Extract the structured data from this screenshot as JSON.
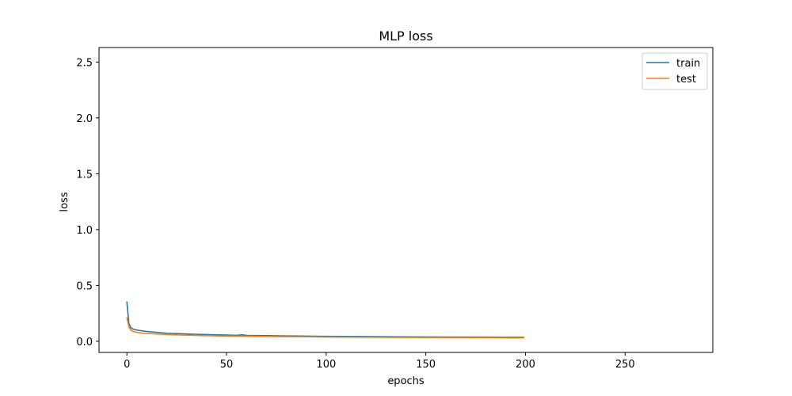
{
  "chart_data": {
    "type": "line",
    "title": "MLP loss",
    "xlabel": "epochs",
    "ylabel": "loss",
    "xlim": [
      -14,
      294
    ],
    "ylim": [
      -0.1,
      2.63
    ],
    "xticks": [
      0,
      50,
      100,
      150,
      200,
      250
    ],
    "yticks": [
      0.0,
      0.5,
      1.0,
      1.5,
      2.0,
      2.5
    ],
    "grid": false,
    "legend_position": "top-right",
    "series": [
      {
        "name": "train",
        "color": "#1f77b4",
        "x": [
          0,
          1,
          2,
          3,
          4,
          5,
          7,
          10,
          15,
          20,
          30,
          40,
          50,
          55,
          58,
          60,
          70,
          80,
          90,
          100,
          120,
          140,
          160,
          180,
          199
        ],
        "y": [
          0.35,
          0.16,
          0.12,
          0.11,
          0.105,
          0.1,
          0.095,
          0.088,
          0.08,
          0.072,
          0.065,
          0.06,
          0.056,
          0.053,
          0.058,
          0.052,
          0.05,
          0.048,
          0.046,
          0.044,
          0.042,
          0.04,
          0.038,
          0.037,
          0.036
        ]
      },
      {
        "name": "test",
        "color": "#ff7f0e",
        "x": [
          0,
          1,
          2,
          3,
          4,
          5,
          7,
          10,
          15,
          20,
          30,
          40,
          50,
          60,
          70,
          80,
          90,
          100,
          120,
          140,
          160,
          180,
          199
        ],
        "y": [
          0.21,
          0.13,
          0.1,
          0.09,
          0.085,
          0.08,
          0.075,
          0.07,
          0.065,
          0.06,
          0.055,
          0.05,
          0.047,
          0.045,
          0.043,
          0.041,
          0.04,
          0.038,
          0.036,
          0.034,
          0.033,
          0.032,
          0.031
        ]
      }
    ]
  }
}
